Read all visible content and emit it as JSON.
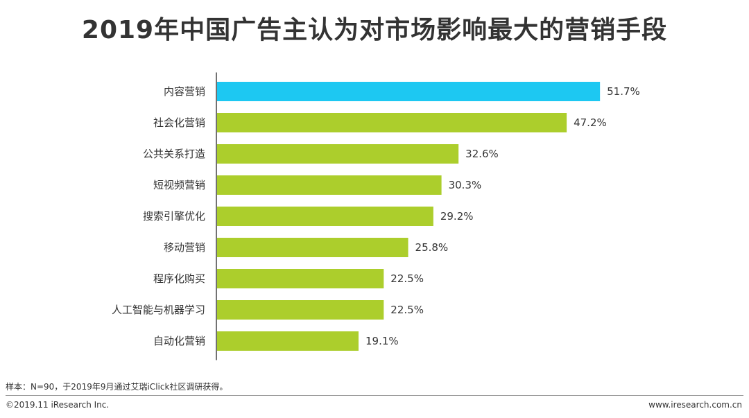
{
  "title": "2019年中国广告主认为对市场影响最大的营销手段",
  "footer": {
    "note": "样本：N=90，于2019年9月通过艾瑞iClick社区调研获得。",
    "copyright": "©2019.11 iResearch Inc.",
    "website": "www.iresearch.com.cn"
  },
  "colors": {
    "highlight": "#1DC8F2",
    "bar": "#ACCE2C",
    "axis": "#444444"
  },
  "chart_data": {
    "type": "bar",
    "orientation": "horizontal",
    "title": "2019年中国广告主认为对市场影响最大的营销手段",
    "categories": [
      "内容营销",
      "社会化营销",
      "公共关系打造",
      "短视频营销",
      "搜索引擎优化",
      "移动营销",
      "程序化购买",
      "人工智能与机器学习",
      "自动化营销"
    ],
    "values": [
      51.7,
      47.2,
      32.6,
      30.3,
      29.2,
      25.8,
      22.5,
      22.5,
      19.1
    ],
    "value_labels": [
      "51.7%",
      "47.2%",
      "32.6%",
      "30.3%",
      "29.2%",
      "25.8%",
      "22.5%",
      "22.5%",
      "19.1%"
    ],
    "unit": "%",
    "highlight_index": 0,
    "xlim": [
      0,
      55
    ],
    "grid": false,
    "legend": "none"
  }
}
